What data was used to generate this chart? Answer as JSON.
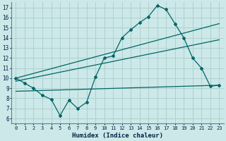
{
  "xlabel": "Humidex (Indice chaleur)",
  "background_color": "#cce8e8",
  "grid_color": "#b0d0d0",
  "line_color": "#006666",
  "xlim": [
    -0.5,
    23.5
  ],
  "ylim": [
    5.5,
    17.5
  ],
  "xticks": [
    0,
    1,
    2,
    3,
    4,
    5,
    6,
    7,
    8,
    9,
    10,
    11,
    12,
    13,
    14,
    15,
    16,
    17,
    18,
    19,
    20,
    21,
    22,
    23
  ],
  "yticks": [
    6,
    7,
    8,
    9,
    10,
    11,
    12,
    13,
    14,
    15,
    16,
    17
  ],
  "main_x": [
    0,
    1,
    2,
    3,
    4,
    5,
    6,
    7,
    8,
    9,
    10,
    11,
    12,
    13,
    14,
    15,
    16,
    17,
    18,
    19,
    20,
    21,
    22,
    23
  ],
  "main_y": [
    10.0,
    9.5,
    9.0,
    8.3,
    7.9,
    6.3,
    7.8,
    7.0,
    7.6,
    10.1,
    12.0,
    12.2,
    14.0,
    14.8,
    15.5,
    16.1,
    17.2,
    16.8,
    15.4,
    14.0,
    12.0,
    11.0,
    9.2,
    9.3
  ],
  "line1_x": [
    0,
    23
  ],
  "line1_y": [
    10.0,
    15.4
  ],
  "line2_x": [
    0,
    23
  ],
  "line2_y": [
    9.7,
    13.8
  ],
  "line3_x": [
    0,
    23
  ],
  "line3_y": [
    8.7,
    9.3
  ]
}
